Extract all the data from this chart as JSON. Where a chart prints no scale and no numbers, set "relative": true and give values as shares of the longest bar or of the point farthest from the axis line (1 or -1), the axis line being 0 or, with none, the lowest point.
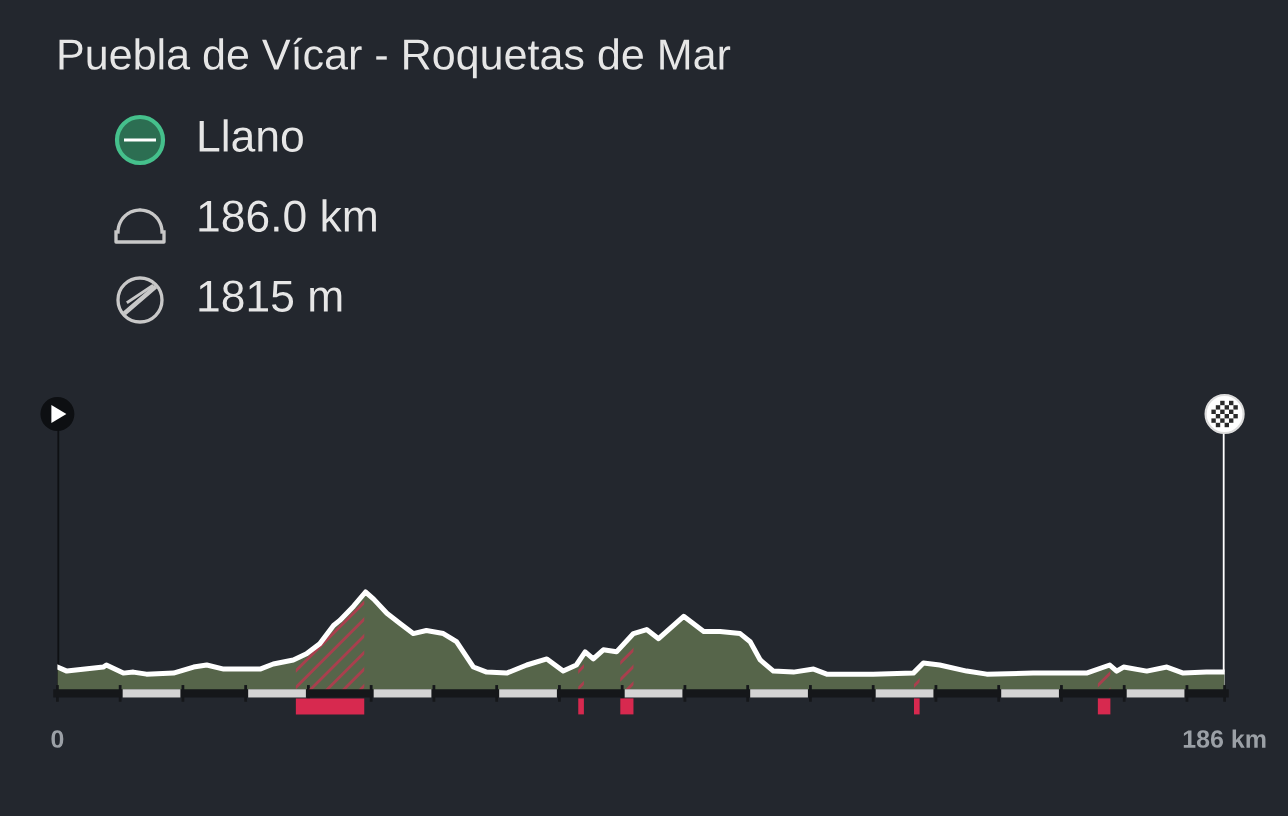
{
  "chart_data": {
    "type": "area",
    "title": "Puebla de Vícar - Roquetas de Mar",
    "annotations": [
      "Llano",
      "186.0 km",
      "1815 m"
    ],
    "relative": true,
    "color": "#56654a",
    "x": [
      0,
      1.5,
      7.3,
      7.8,
      10.5,
      12.1,
      14.2,
      18.5,
      21.7,
      23.8,
      26.5,
      32.3,
      34.4,
      37.6,
      39.7,
      41.8,
      44.0,
      45.0,
      47.2,
      49.1,
      50.4,
      52.5,
      54.6,
      56.7,
      58.8,
      61.5,
      63.6,
      66.3,
      68.4,
      71.6,
      74.8,
      78.0,
      80.6,
      82.7,
      84.1,
      85.4,
      87.0,
      89.1,
      91.8,
      93.9,
      95.8,
      99.8,
      103.0,
      105.6,
      108.8,
      110.4,
      112.0,
      114.1,
      117.3,
      120.5,
      122.6,
      130.0,
      136.4,
      138.0,
      140.6,
      144.9,
      148.1,
      155.5,
      164.0,
      167.7,
      168.8,
      169.9,
      173.6,
      176.8,
      179.4,
      183.1,
      186
    ],
    "values": [
      0.26,
      0.22,
      0.26,
      0.28,
      0.2,
      0.21,
      0.19,
      0.2,
      0.26,
      0.28,
      0.24,
      0.24,
      0.29,
      0.33,
      0.39,
      0.49,
      0.67,
      0.72,
      0.86,
      1,
      0.93,
      0.79,
      0.69,
      0.59,
      0.62,
      0.59,
      0.51,
      0.26,
      0.21,
      0.2,
      0.28,
      0.34,
      0.22,
      0.28,
      0.41,
      0.34,
      0.43,
      0.41,
      0.59,
      0.63,
      0.54,
      0.76,
      0.61,
      0.61,
      0.59,
      0.51,
      0.33,
      0.22,
      0.21,
      0.24,
      0.19,
      0.19,
      0.2,
      0.3,
      0.28,
      0.22,
      0.19,
      0.2,
      0.2,
      0.28,
      0.22,
      0.26,
      0.22,
      0.26,
      0.2,
      0.21,
      0.21
    ],
    "xlim": [
      0,
      186
    ],
    "xticks": [
      0,
      {
        "value": 10,
        "label": null
      },
      {
        "value": 20,
        "label": null
      },
      {
        "value": 30,
        "label": null
      },
      {
        "value": 40,
        "label": null
      },
      {
        "value": 50,
        "label": null
      },
      {
        "value": 60,
        "label": null
      },
      {
        "value": 70,
        "label": null
      },
      {
        "value": 80,
        "label": null
      },
      {
        "value": 90,
        "label": null
      },
      {
        "value": 100,
        "label": null
      },
      {
        "value": 110,
        "label": null
      },
      {
        "value": 120,
        "label": null
      },
      {
        "value": 130,
        "label": null
      },
      {
        "value": 140,
        "label": null
      },
      {
        "value": 150,
        "label": null
      },
      {
        "value": 160,
        "label": null
      },
      {
        "value": 170,
        "label": null
      },
      {
        "value": 180,
        "label": null
      },
      {
        "value": 186,
        "label": "186 km"
      }
    ],
    "bands": [
      {
        "axis": "x",
        "from": 38.0,
        "to": 48.9,
        "color": "#d7294f"
      },
      {
        "axis": "x",
        "from": 83.0,
        "to": 83.9,
        "color": "#d7294f"
      },
      {
        "axis": "x",
        "from": 89.7,
        "to": 91.8,
        "color": "#d7294f"
      },
      {
        "axis": "x",
        "from": 136.5,
        "to": 137.4,
        "color": "#d7294f"
      },
      {
        "axis": "x",
        "from": 165.8,
        "to": 167.8,
        "color": "#d7294f"
      }
    ],
    "ref_lines": [
      {
        "axis": "x",
        "value": 0,
        "color": "#0e1013"
      },
      {
        "axis": "x",
        "value": 186,
        "color": "#ffffff"
      }
    ]
  }
}
